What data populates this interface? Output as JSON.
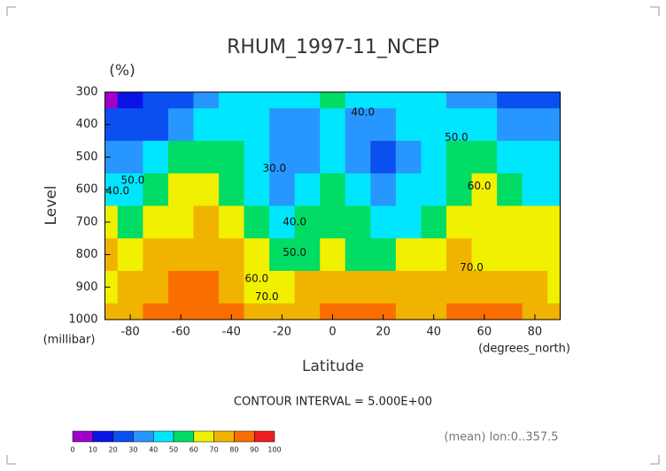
{
  "chart_data": {
    "type": "contour",
    "title": "RHUM_1997-11_NCEP",
    "unit_label": "(%)",
    "y_label": "Level",
    "y_unit": "(millibar)",
    "x_label": "Latitude",
    "x_unit": "(degrees_north)",
    "note": "CONTOUR INTERVAL = 5.000E+00",
    "footer": "(mean) lon:0..357.5",
    "x": [
      -90,
      -80,
      -70,
      -60,
      -50,
      -40,
      -30,
      -20,
      -10,
      0,
      10,
      20,
      30,
      40,
      50,
      60,
      70,
      80,
      90
    ],
    "y": [
      300,
      400,
      500,
      600,
      700,
      800,
      900,
      1000
    ],
    "z": [
      [
        5,
        15,
        20,
        25,
        30,
        40,
        45,
        45,
        45,
        50,
        45,
        45,
        45,
        40,
        35,
        30,
        25,
        20,
        20
      ],
      [
        25,
        20,
        25,
        30,
        40,
        45,
        40,
        30,
        35,
        45,
        35,
        35,
        40,
        45,
        45,
        40,
        35,
        30,
        30
      ],
      [
        35,
        30,
        45,
        50,
        55,
        50,
        40,
        30,
        35,
        45,
        35,
        25,
        35,
        45,
        50,
        50,
        45,
        40,
        40
      ],
      [
        40,
        45,
        55,
        60,
        65,
        55,
        45,
        35,
        40,
        50,
        40,
        35,
        40,
        45,
        55,
        60,
        55,
        45,
        45
      ],
      [
        60,
        55,
        60,
        65,
        70,
        65,
        50,
        45,
        50,
        55,
        50,
        45,
        45,
        50,
        60,
        65,
        65,
        60,
        60
      ],
      [
        70,
        65,
        70,
        75,
        75,
        70,
        60,
        50,
        55,
        60,
        55,
        55,
        60,
        65,
        70,
        65,
        65,
        65,
        65
      ],
      [
        65,
        70,
        75,
        80,
        80,
        75,
        65,
        65,
        70,
        75,
        75,
        75,
        70,
        70,
        75,
        75,
        70,
        70,
        65
      ],
      [
        70,
        75,
        80,
        85,
        85,
        80,
        75,
        75,
        75,
        80,
        80,
        80,
        75,
        75,
        85,
        85,
        80,
        75,
        70
      ]
    ],
    "xlim": [
      -90,
      90
    ],
    "ylim": [
      1000,
      300
    ],
    "xticks": [
      -80,
      -60,
      -40,
      -20,
      0,
      20,
      40,
      60,
      80
    ],
    "yticks": [
      300,
      400,
      500,
      600,
      700,
      800,
      900,
      1000
    ],
    "colorbar": {
      "ticks": [
        0,
        10,
        20,
        30,
        40,
        50,
        60,
        70,
        80,
        90,
        100
      ],
      "colors": [
        "#a000c8",
        "#0a14e6",
        "#0a50f0",
        "#2896ff",
        "#00e6ff",
        "#00dc64",
        "#f0f000",
        "#f0b400",
        "#fa6e00",
        "#f01e1e"
      ]
    },
    "contour_labels": [
      {
        "value": 40,
        "label": "40.0",
        "x": 12,
        "y": 363
      },
      {
        "value": 30,
        "label": "30.0",
        "x": -23,
        "y": 535
      },
      {
        "value": 50,
        "label": "50.0",
        "x": -79,
        "y": 572
      },
      {
        "value": 40,
        "label": "40.0",
        "x": -85,
        "y": 605
      },
      {
        "value": 40,
        "label": "40.0",
        "x": -15,
        "y": 700
      },
      {
        "value": 50,
        "label": "50.0",
        "x": -15,
        "y": 795
      },
      {
        "value": 60,
        "label": "60.0",
        "x": -30,
        "y": 875
      },
      {
        "value": 70,
        "label": "70.0",
        "x": -26,
        "y": 930
      },
      {
        "value": 50,
        "label": "50.0",
        "x": 49,
        "y": 440
      },
      {
        "value": 60,
        "label": "60.0",
        "x": 58,
        "y": 590
      },
      {
        "value": 70,
        "label": "70.0",
        "x": 55,
        "y": 840
      }
    ]
  }
}
